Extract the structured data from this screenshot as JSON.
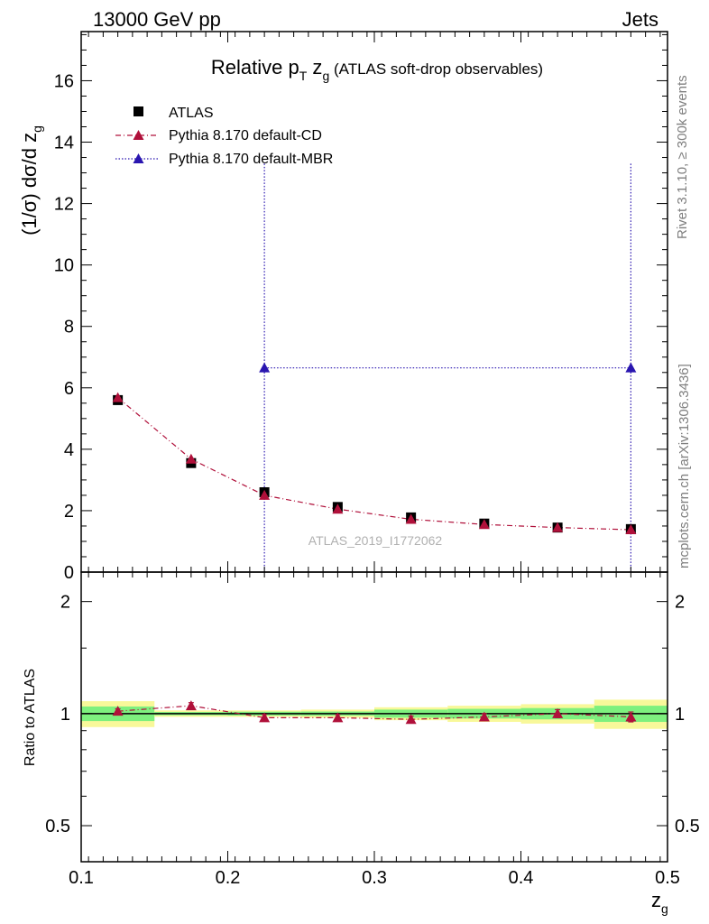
{
  "header": {
    "left": "13000 GeV pp",
    "right": "Jets"
  },
  "title": {
    "main": "Relative p",
    "main_sub": "T",
    "zg": " z",
    "zg_sub": "g",
    "rest": " (ATLAS soft-drop observables)"
  },
  "ylabel": {
    "main": "(1/σ) dσ/d z",
    "sub": "g"
  },
  "ratio_ylabel": "Ratio to ATLAS",
  "xlabel": {
    "main": "z",
    "sub": "g"
  },
  "side_text": {
    "rivet": "Rivet 3.1.10, ≥ 300k events",
    "mcplots": "mcplots.cern.ch [arXiv:1306.3436]"
  },
  "watermark": "ATLAS_2019_I1772062",
  "legend": {
    "placement": "top-left",
    "entries": [
      {
        "label": "ATLAS",
        "color": "#000000",
        "marker": "square",
        "line": "none"
      },
      {
        "label": "Pythia 8.170 default-CD",
        "color": "#b0103a",
        "marker": "triangle",
        "line": "dash-dot"
      },
      {
        "label": "Pythia 8.170 default-MBR",
        "color": "#2a16b0",
        "marker": "triangle",
        "line": "dotted"
      }
    ]
  },
  "colors": {
    "data": "#000000",
    "cd": "#b0103a",
    "mbr": "#2a16b0",
    "band_inner": "#7ef07e",
    "band_outer": "#f8f89a"
  },
  "chart_data": {
    "type": "scatter",
    "xlabel": "z_g",
    "ylabel": "(1/σ) dσ/d z_g",
    "xlim": [
      0.1,
      0.5
    ],
    "ylim": [
      0,
      17.6
    ],
    "xticks": [
      0.1,
      0.2,
      0.3,
      0.4,
      0.5
    ],
    "xtick_labels": [
      "0.1",
      "0.2",
      "0.3",
      "0.4",
      "0.5"
    ],
    "yticks": [
      0,
      2,
      4,
      6,
      8,
      10,
      12,
      14,
      16
    ],
    "ytick_labels": [
      "0",
      "2",
      "4",
      "6",
      "8",
      "10",
      "12",
      "14",
      "16"
    ],
    "bins": [
      [
        0.1,
        0.15
      ],
      [
        0.15,
        0.2
      ],
      [
        0.2,
        0.25
      ],
      [
        0.25,
        0.3
      ],
      [
        0.3,
        0.35
      ],
      [
        0.35,
        0.4
      ],
      [
        0.4,
        0.45
      ],
      [
        0.45,
        0.5
      ]
    ],
    "x": [
      0.125,
      0.175,
      0.225,
      0.275,
      0.325,
      0.375,
      0.425,
      0.475
    ],
    "series": [
      {
        "name": "ATLAS",
        "values": [
          5.6,
          3.55,
          2.6,
          2.12,
          1.78,
          1.58,
          1.45,
          1.4
        ],
        "errors": [
          0.15,
          0.1,
          0.08,
          0.06,
          0.05,
          0.05,
          0.05,
          0.06
        ]
      },
      {
        "name": "Pythia 8.170 default-CD",
        "values": [
          5.68,
          3.68,
          2.5,
          2.05,
          1.72,
          1.55,
          1.45,
          1.38
        ]
      },
      {
        "name": "Pythia 8.170 default-MBR",
        "points": [
          {
            "x": 0.225,
            "y": 6.65,
            "yerr": 6.65
          },
          {
            "x": 0.475,
            "y": 6.65,
            "yerr": 6.65
          }
        ]
      }
    ],
    "ratio": {
      "ylabel": "Ratio to ATLAS",
      "yscale": "log",
      "ylim": [
        0.4,
        2.4
      ],
      "yticks": [
        0.5,
        1,
        2
      ],
      "ytick_labels": [
        "0.5",
        "1",
        "2"
      ],
      "cd_ratio": [
        1.015,
        1.05,
        0.975,
        0.975,
        0.965,
        0.98,
        1.0,
        0.98
      ],
      "cd_ratio_err": [
        0.015,
        0.02,
        0.02,
        0.02,
        0.02,
        0.02,
        0.025,
        0.03
      ],
      "band_inner": [
        0.045,
        0.01,
        0.012,
        0.013,
        0.025,
        0.03,
        0.035,
        0.05
      ],
      "band_outer": [
        0.08,
        0.02,
        0.02,
        0.025,
        0.04,
        0.05,
        0.06,
        0.09
      ]
    }
  }
}
